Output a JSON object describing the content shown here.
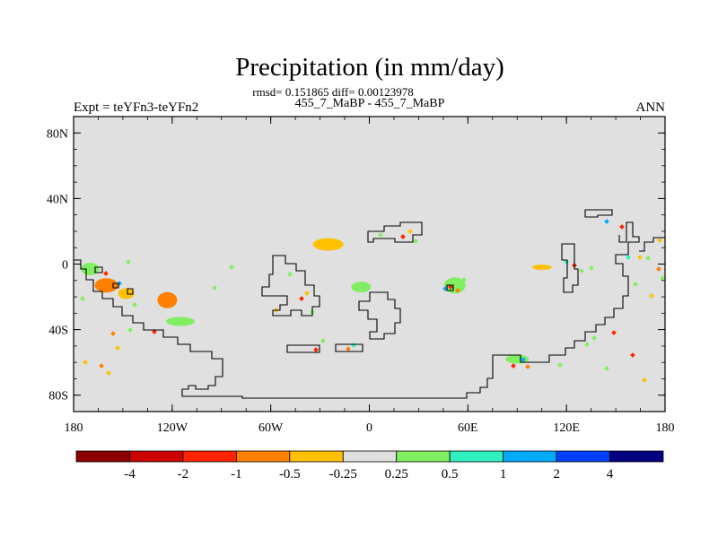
{
  "chart_data": {
    "type": "contour-map",
    "title": "Precipitation (in mm/day)",
    "stats_line": "rmsd= 0.151865 diff= 0.00123978",
    "case_line": "455_7_MaBP - 455_7_MaBP",
    "left_label": "Expt = teYFn3-teYFn2",
    "right_label": "ANN",
    "x_axis": {
      "range": [
        -180,
        180
      ],
      "ticks": [
        -180,
        -120,
        -60,
        0,
        60,
        120,
        180
      ],
      "tick_labels": [
        "180",
        "120W",
        "60W",
        "0",
        "60E",
        "120E",
        "180"
      ]
    },
    "y_axis": {
      "range": [
        -90,
        90
      ],
      "ticks": [
        80,
        40,
        0,
        -40,
        -80
      ],
      "tick_labels": [
        "80N",
        "40N",
        "0",
        "40S",
        "80S"
      ]
    },
    "colorbar": {
      "colors": [
        "#8b0000",
        "#cd0000",
        "#ff2400",
        "#ff7f00",
        "#ffc000",
        "#e0e0e0",
        "#80ee60",
        "#30f0c0",
        "#00aaff",
        "#0040ff",
        "#000080"
      ],
      "labels": [
        "-4",
        "-2",
        "-1",
        "-0.5",
        "-0.25",
        "0.25",
        "0.5",
        "1",
        "2",
        "4"
      ]
    },
    "features": [
      {
        "name": "Positive anomaly",
        "lon": -170,
        "lat": -3,
        "class": "0.5",
        "color": "#80ee60"
      },
      {
        "name": "Negative anomaly",
        "lon": -160,
        "lat": -13,
        "class": "-0.5",
        "color": "#ff7f00"
      },
      {
        "name": "Negative anomaly",
        "lon": -148,
        "lat": -18,
        "class": "-0.25",
        "color": "#ffc000"
      },
      {
        "name": "Negative anomaly",
        "lon": -123,
        "lat": -22,
        "class": "-0.5",
        "color": "#ff7f00"
      },
      {
        "name": "Positive anomaly",
        "lon": -115,
        "lat": -35,
        "class": "0.5",
        "color": "#80ee60"
      },
      {
        "name": "Negative anomaly",
        "lon": -25,
        "lat": 12,
        "class": "-0.25",
        "color": "#ffc000"
      },
      {
        "name": "Positive anomaly",
        "lon": -5,
        "lat": -14,
        "class": "0.5",
        "color": "#80ee60"
      },
      {
        "name": "Positive anomaly",
        "lon": 52,
        "lat": -13,
        "class": "0.5",
        "color": "#80ee60"
      },
      {
        "name": "Negative anomaly",
        "lon": 105,
        "lat": -2,
        "class": "-0.25",
        "color": "#ffc000"
      },
      {
        "name": "Positive anomaly",
        "lon": 90,
        "lat": -58,
        "class": "0.5",
        "color": "#80ee60"
      }
    ]
  }
}
